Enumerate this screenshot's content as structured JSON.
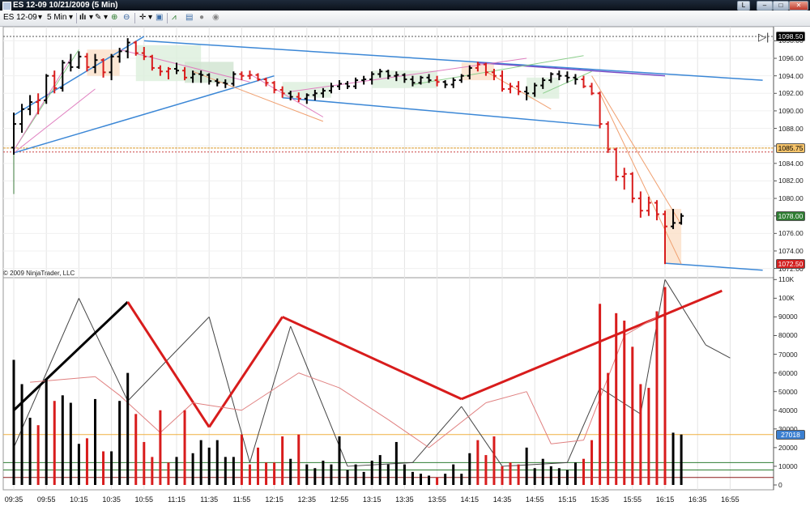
{
  "window": {
    "title": "ES 12-09  10/21/2009 (5 Min)",
    "buttons": [
      "L",
      "–",
      "□",
      "✕"
    ]
  },
  "toolbar": {
    "instrument": "ES 12-09",
    "period": "5 Min",
    "icons": [
      "bar-style-icon",
      "pencil-draw-icon",
      "zoom-in-icon",
      "zoom-out-icon",
      "crosshair-icon",
      "properties-icon",
      "indicators-icon",
      "strategy-icon",
      "alert-icon"
    ]
  },
  "price_panel": {
    "copyright": "© 2009 NinjaTrader, LLC",
    "y_ticks": [
      "1098.00",
      "1096.00",
      "1094.00",
      "1092.00",
      "1090.00",
      "1088.00",
      "1086.00",
      "1084.00",
      "1082.00",
      "1080.00",
      "1078.00",
      "1076.00",
      "1074.00",
      "1072.00"
    ],
    "tags": [
      {
        "text": "1098.50",
        "bg": "#000000",
        "fg": "#ffffff"
      },
      {
        "text": "1085.75",
        "bg": "#f5c36a",
        "fg": "#000000"
      },
      {
        "text": "1078.00",
        "bg": "#2e7d32",
        "fg": "#ffffff"
      },
      {
        "text": "1072.50",
        "bg": "#d32020",
        "fg": "#ffffff"
      }
    ]
  },
  "volume_panel": {
    "y_ticks": [
      "110K",
      "100K",
      "90000",
      "80000",
      "70000",
      "60000",
      "50000",
      "40000",
      "30000",
      "20000",
      "10000",
      "0"
    ],
    "tag": {
      "text": "27018",
      "bg": "#3b7fd0",
      "fg": "#ffffff"
    }
  },
  "x_ticks": [
    "09:35",
    "09:55",
    "10:15",
    "10:35",
    "10:55",
    "11:15",
    "11:35",
    "11:55",
    "12:15",
    "12:35",
    "12:55",
    "13:15",
    "13:35",
    "13:55",
    "14:15",
    "14:35",
    "14:55",
    "15:15",
    "15:35",
    "15:55",
    "16:15",
    "16:35",
    "16:55"
  ],
  "chart_data": {
    "type": "bar",
    "instrument": "ES 12-09",
    "date": "10/21/2009",
    "interval": "5 Min",
    "price_ylim": [
      1072,
      1099
    ],
    "volume_ylim": [
      0,
      110000
    ],
    "bars": [
      {
        "t": 0,
        "o": 1085.8,
        "h": 1089.8,
        "l": 1085.0,
        "c": 1088.5,
        "v": 67000,
        "up": true
      },
      {
        "t": 1,
        "o": 1088.5,
        "h": 1090.8,
        "l": 1087.5,
        "c": 1090.2,
        "v": 54000,
        "up": true
      },
      {
        "t": 2,
        "o": 1090.2,
        "h": 1091.8,
        "l": 1089.5,
        "c": 1091.0,
        "v": 36000,
        "up": true
      },
      {
        "t": 3,
        "o": 1091.0,
        "h": 1092.0,
        "l": 1089.6,
        "c": 1091.2,
        "v": 32000,
        "up": false
      },
      {
        "t": 4,
        "o": 1091.2,
        "h": 1094.2,
        "l": 1090.8,
        "c": 1094.0,
        "v": 57000,
        "up": true
      },
      {
        "t": 5,
        "o": 1094.0,
        "h": 1094.6,
        "l": 1092.0,
        "c": 1092.6,
        "v": 45000,
        "up": false
      },
      {
        "t": 6,
        "o": 1092.6,
        "h": 1095.8,
        "l": 1092.2,
        "c": 1095.5,
        "v": 48000,
        "up": true
      },
      {
        "t": 7,
        "o": 1095.5,
        "h": 1096.5,
        "l": 1094.5,
        "c": 1095.0,
        "v": 44000,
        "up": true
      },
      {
        "t": 8,
        "o": 1095.0,
        "h": 1096.8,
        "l": 1094.8,
        "c": 1096.2,
        "v": 22000,
        "up": true
      },
      {
        "t": 9,
        "o": 1096.2,
        "h": 1096.6,
        "l": 1094.5,
        "c": 1095.0,
        "v": 25000,
        "up": false
      },
      {
        "t": 10,
        "o": 1095.0,
        "h": 1096.5,
        "l": 1094.3,
        "c": 1095.8,
        "v": 46000,
        "up": true
      },
      {
        "t": 11,
        "o": 1095.8,
        "h": 1096.0,
        "l": 1093.8,
        "c": 1094.4,
        "v": 18000,
        "up": false
      },
      {
        "t": 12,
        "o": 1094.4,
        "h": 1096.5,
        "l": 1093.5,
        "c": 1096.2,
        "v": 18000,
        "up": true
      },
      {
        "t": 13,
        "o": 1096.2,
        "h": 1097.2,
        "l": 1095.5,
        "c": 1096.8,
        "v": 45000,
        "up": true
      },
      {
        "t": 14,
        "o": 1096.8,
        "h": 1098.3,
        "l": 1096.0,
        "c": 1097.8,
        "v": 60000,
        "up": true
      },
      {
        "t": 15,
        "o": 1097.8,
        "h": 1098.0,
        "l": 1096.3,
        "c": 1096.6,
        "v": 38000,
        "up": false
      },
      {
        "t": 16,
        "o": 1096.6,
        "h": 1097.3,
        "l": 1095.8,
        "c": 1096.2,
        "v": 23000,
        "up": false
      },
      {
        "t": 17,
        "o": 1096.2,
        "h": 1096.4,
        "l": 1094.6,
        "c": 1094.9,
        "v": 15000,
        "up": false
      },
      {
        "t": 18,
        "o": 1094.9,
        "h": 1095.2,
        "l": 1094.0,
        "c": 1094.5,
        "v": 40000,
        "up": false
      },
      {
        "t": 19,
        "o": 1094.5,
        "h": 1095.0,
        "l": 1093.6,
        "c": 1094.8,
        "v": 12000,
        "up": false
      },
      {
        "t": 20,
        "o": 1094.8,
        "h": 1095.5,
        "l": 1094.2,
        "c": 1094.6,
        "v": 15000,
        "up": true
      },
      {
        "t": 21,
        "o": 1094.6,
        "h": 1095.0,
        "l": 1093.5,
        "c": 1093.8,
        "v": 40000,
        "up": false
      },
      {
        "t": 22,
        "o": 1093.8,
        "h": 1094.6,
        "l": 1093.2,
        "c": 1094.2,
        "v": 17000,
        "up": true
      },
      {
        "t": 23,
        "o": 1094.2,
        "h": 1094.6,
        "l": 1093.2,
        "c": 1094.1,
        "v": 24000,
        "up": true
      },
      {
        "t": 24,
        "o": 1094.1,
        "h": 1094.3,
        "l": 1093.0,
        "c": 1093.4,
        "v": 20000,
        "up": true
      },
      {
        "t": 25,
        "o": 1093.4,
        "h": 1093.7,
        "l": 1092.8,
        "c": 1093.2,
        "v": 24000,
        "up": true
      },
      {
        "t": 26,
        "o": 1093.2,
        "h": 1093.6,
        "l": 1092.6,
        "c": 1093.1,
        "v": 15000,
        "up": true
      },
      {
        "t": 27,
        "o": 1093.1,
        "h": 1094.5,
        "l": 1092.8,
        "c": 1094.2,
        "v": 15000,
        "up": true
      },
      {
        "t": 28,
        "o": 1094.2,
        "h": 1094.5,
        "l": 1093.5,
        "c": 1094.0,
        "v": 27000,
        "up": false
      },
      {
        "t": 29,
        "o": 1094.0,
        "h": 1094.6,
        "l": 1093.6,
        "c": 1094.1,
        "v": 11000,
        "up": false
      },
      {
        "t": 30,
        "o": 1094.1,
        "h": 1094.3,
        "l": 1093.4,
        "c": 1093.6,
        "v": 20000,
        "up": false
      },
      {
        "t": 31,
        "o": 1093.6,
        "h": 1093.8,
        "l": 1092.8,
        "c": 1093.2,
        "v": 12000,
        "up": false
      },
      {
        "t": 32,
        "o": 1093.2,
        "h": 1093.4,
        "l": 1092.0,
        "c": 1092.4,
        "v": 12000,
        "up": false
      },
      {
        "t": 33,
        "o": 1092.4,
        "h": 1092.8,
        "l": 1091.5,
        "c": 1092.0,
        "v": 26000,
        "up": false
      },
      {
        "t": 34,
        "o": 1092.0,
        "h": 1092.3,
        "l": 1091.2,
        "c": 1091.6,
        "v": 14000,
        "up": true
      },
      {
        "t": 35,
        "o": 1091.6,
        "h": 1092.1,
        "l": 1091.0,
        "c": 1091.4,
        "v": 27000,
        "up": false
      },
      {
        "t": 36,
        "o": 1091.4,
        "h": 1092.0,
        "l": 1090.8,
        "c": 1091.8,
        "v": 11000,
        "up": true
      },
      {
        "t": 37,
        "o": 1091.8,
        "h": 1092.4,
        "l": 1091.2,
        "c": 1092.0,
        "v": 9000,
        "up": true
      },
      {
        "t": 38,
        "o": 1092.0,
        "h": 1092.6,
        "l": 1091.5,
        "c": 1092.3,
        "v": 13000,
        "up": true
      },
      {
        "t": 39,
        "o": 1092.3,
        "h": 1093.2,
        "l": 1092.0,
        "c": 1092.8,
        "v": 11000,
        "up": true
      },
      {
        "t": 40,
        "o": 1092.8,
        "h": 1093.5,
        "l": 1092.4,
        "c": 1093.1,
        "v": 26000,
        "up": true
      },
      {
        "t": 41,
        "o": 1093.1,
        "h": 1093.4,
        "l": 1092.5,
        "c": 1092.8,
        "v": 8000,
        "up": true
      },
      {
        "t": 42,
        "o": 1092.8,
        "h": 1093.8,
        "l": 1092.5,
        "c": 1093.5,
        "v": 11000,
        "up": true
      },
      {
        "t": 43,
        "o": 1093.5,
        "h": 1094.0,
        "l": 1093.0,
        "c": 1093.6,
        "v": 7000,
        "up": true
      },
      {
        "t": 44,
        "o": 1093.6,
        "h": 1094.5,
        "l": 1093.0,
        "c": 1094.2,
        "v": 13000,
        "up": true
      },
      {
        "t": 45,
        "o": 1094.2,
        "h": 1094.8,
        "l": 1093.8,
        "c": 1094.5,
        "v": 16000,
        "up": true
      },
      {
        "t": 46,
        "o": 1094.5,
        "h": 1094.7,
        "l": 1093.6,
        "c": 1094.0,
        "v": 11000,
        "up": true
      },
      {
        "t": 47,
        "o": 1094.0,
        "h": 1094.5,
        "l": 1093.4,
        "c": 1094.1,
        "v": 23000,
        "up": true
      },
      {
        "t": 48,
        "o": 1094.1,
        "h": 1094.3,
        "l": 1093.2,
        "c": 1093.6,
        "v": 11000,
        "up": true
      },
      {
        "t": 49,
        "o": 1093.6,
        "h": 1094.0,
        "l": 1092.8,
        "c": 1093.2,
        "v": 7000,
        "up": true
      },
      {
        "t": 50,
        "o": 1093.2,
        "h": 1094.0,
        "l": 1093.0,
        "c": 1093.8,
        "v": 6000,
        "up": true
      },
      {
        "t": 51,
        "o": 1093.8,
        "h": 1094.2,
        "l": 1093.2,
        "c": 1093.5,
        "v": 5000,
        "up": true
      },
      {
        "t": 52,
        "o": 1093.5,
        "h": 1094.0,
        "l": 1092.8,
        "c": 1093.3,
        "v": 4000,
        "up": false
      },
      {
        "t": 53,
        "o": 1093.3,
        "h": 1093.5,
        "l": 1092.6,
        "c": 1093.0,
        "v": 6000,
        "up": true
      },
      {
        "t": 54,
        "o": 1093.0,
        "h": 1093.8,
        "l": 1092.6,
        "c": 1093.5,
        "v": 11000,
        "up": true
      },
      {
        "t": 55,
        "o": 1093.5,
        "h": 1094.2,
        "l": 1093.2,
        "c": 1094.0,
        "v": 6000,
        "up": true
      },
      {
        "t": 56,
        "o": 1094.0,
        "h": 1095.2,
        "l": 1093.6,
        "c": 1094.9,
        "v": 17000,
        "up": true
      },
      {
        "t": 57,
        "o": 1094.9,
        "h": 1095.6,
        "l": 1094.5,
        "c": 1095.3,
        "v": 24000,
        "up": false
      },
      {
        "t": 58,
        "o": 1095.3,
        "h": 1095.5,
        "l": 1094.0,
        "c": 1094.4,
        "v": 16000,
        "up": false
      },
      {
        "t": 59,
        "o": 1094.4,
        "h": 1094.8,
        "l": 1093.5,
        "c": 1094.0,
        "v": 26000,
        "up": false
      },
      {
        "t": 60,
        "o": 1094.0,
        "h": 1094.6,
        "l": 1092.2,
        "c": 1092.5,
        "v": 10000,
        "up": false
      },
      {
        "t": 61,
        "o": 1092.5,
        "h": 1093.2,
        "l": 1092.0,
        "c": 1092.8,
        "v": 12000,
        "up": false
      },
      {
        "t": 62,
        "o": 1092.8,
        "h": 1093.4,
        "l": 1091.8,
        "c": 1092.2,
        "v": 11000,
        "up": false
      },
      {
        "t": 63,
        "o": 1092.2,
        "h": 1092.8,
        "l": 1091.2,
        "c": 1092.0,
        "v": 20000,
        "up": true
      },
      {
        "t": 64,
        "o": 1092.0,
        "h": 1093.2,
        "l": 1091.6,
        "c": 1092.9,
        "v": 9000,
        "up": true
      },
      {
        "t": 65,
        "o": 1092.9,
        "h": 1093.8,
        "l": 1092.5,
        "c": 1093.5,
        "v": 14000,
        "up": true
      },
      {
        "t": 66,
        "o": 1093.5,
        "h": 1094.4,
        "l": 1093.2,
        "c": 1094.2,
        "v": 10000,
        "up": true
      },
      {
        "t": 67,
        "o": 1094.2,
        "h": 1094.6,
        "l": 1093.5,
        "c": 1094.0,
        "v": 9000,
        "up": true
      },
      {
        "t": 68,
        "o": 1094.0,
        "h": 1094.5,
        "l": 1093.2,
        "c": 1093.8,
        "v": 8000,
        "up": true
      },
      {
        "t": 69,
        "o": 1093.8,
        "h": 1094.2,
        "l": 1093.0,
        "c": 1093.6,
        "v": 12000,
        "up": true
      },
      {
        "t": 70,
        "o": 1093.6,
        "h": 1094.0,
        "l": 1092.6,
        "c": 1092.8,
        "v": 14000,
        "up": false
      },
      {
        "t": 71,
        "o": 1092.8,
        "h": 1093.2,
        "l": 1091.8,
        "c": 1092.0,
        "v": 24000,
        "up": false
      },
      {
        "t": 72,
        "o": 1092.0,
        "h": 1092.2,
        "l": 1088.0,
        "c": 1088.5,
        "v": 97000,
        "up": false
      },
      {
        "t": 73,
        "o": 1088.5,
        "h": 1088.8,
        "l": 1085.2,
        "c": 1085.6,
        "v": 60000,
        "up": false
      },
      {
        "t": 74,
        "o": 1085.6,
        "h": 1085.8,
        "l": 1082.0,
        "c": 1082.5,
        "v": 92000,
        "up": false
      },
      {
        "t": 75,
        "o": 1082.5,
        "h": 1083.5,
        "l": 1081.0,
        "c": 1082.8,
        "v": 88000,
        "up": false
      },
      {
        "t": 76,
        "o": 1082.8,
        "h": 1083.0,
        "l": 1079.5,
        "c": 1080.0,
        "v": 74000,
        "up": false
      },
      {
        "t": 77,
        "o": 1080.0,
        "h": 1080.8,
        "l": 1077.8,
        "c": 1078.6,
        "v": 54000,
        "up": false
      },
      {
        "t": 78,
        "o": 1078.6,
        "h": 1080.2,
        "l": 1078.0,
        "c": 1079.5,
        "v": 52000,
        "up": false
      },
      {
        "t": 79,
        "o": 1079.5,
        "h": 1079.8,
        "l": 1077.5,
        "c": 1078.2,
        "v": 93000,
        "up": false
      },
      {
        "t": 80,
        "o": 1078.2,
        "h": 1078.6,
        "l": 1072.5,
        "c": 1076.8,
        "v": 106000,
        "up": false
      },
      {
        "t": 81,
        "o": 1076.8,
        "h": 1078.8,
        "l": 1076.5,
        "c": 1077.2,
        "v": 28000,
        "up": true
      },
      {
        "t": 82,
        "o": 1077.2,
        "h": 1078.3,
        "l": 1077.0,
        "c": 1078.0,
        "v": 27018,
        "up": true
      }
    ]
  }
}
